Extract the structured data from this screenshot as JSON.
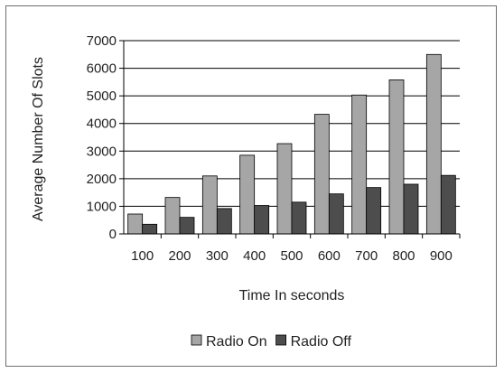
{
  "chart_data": {
    "type": "bar",
    "title": "",
    "xlabel": "Time In seconds",
    "ylabel": "Average Number Of Slots",
    "categories": [
      "100",
      "200",
      "300",
      "400",
      "500",
      "600",
      "700",
      "800",
      "900"
    ],
    "ylim": [
      0,
      7000
    ],
    "yticks": [
      "0",
      "1000",
      "2000",
      "3000",
      "4000",
      "5000",
      "6000",
      "7000"
    ],
    "grid": true,
    "legend_position": "bottom",
    "series": [
      {
        "name": "Radio On",
        "color": "#a6a6a6",
        "values": [
          720,
          1320,
          2100,
          2850,
          3270,
          4330,
          5030,
          5580,
          6500
        ]
      },
      {
        "name": "Radio Off",
        "color": "#4d4d4d",
        "values": [
          350,
          600,
          920,
          1030,
          1150,
          1450,
          1680,
          1800,
          2120
        ]
      }
    ]
  }
}
